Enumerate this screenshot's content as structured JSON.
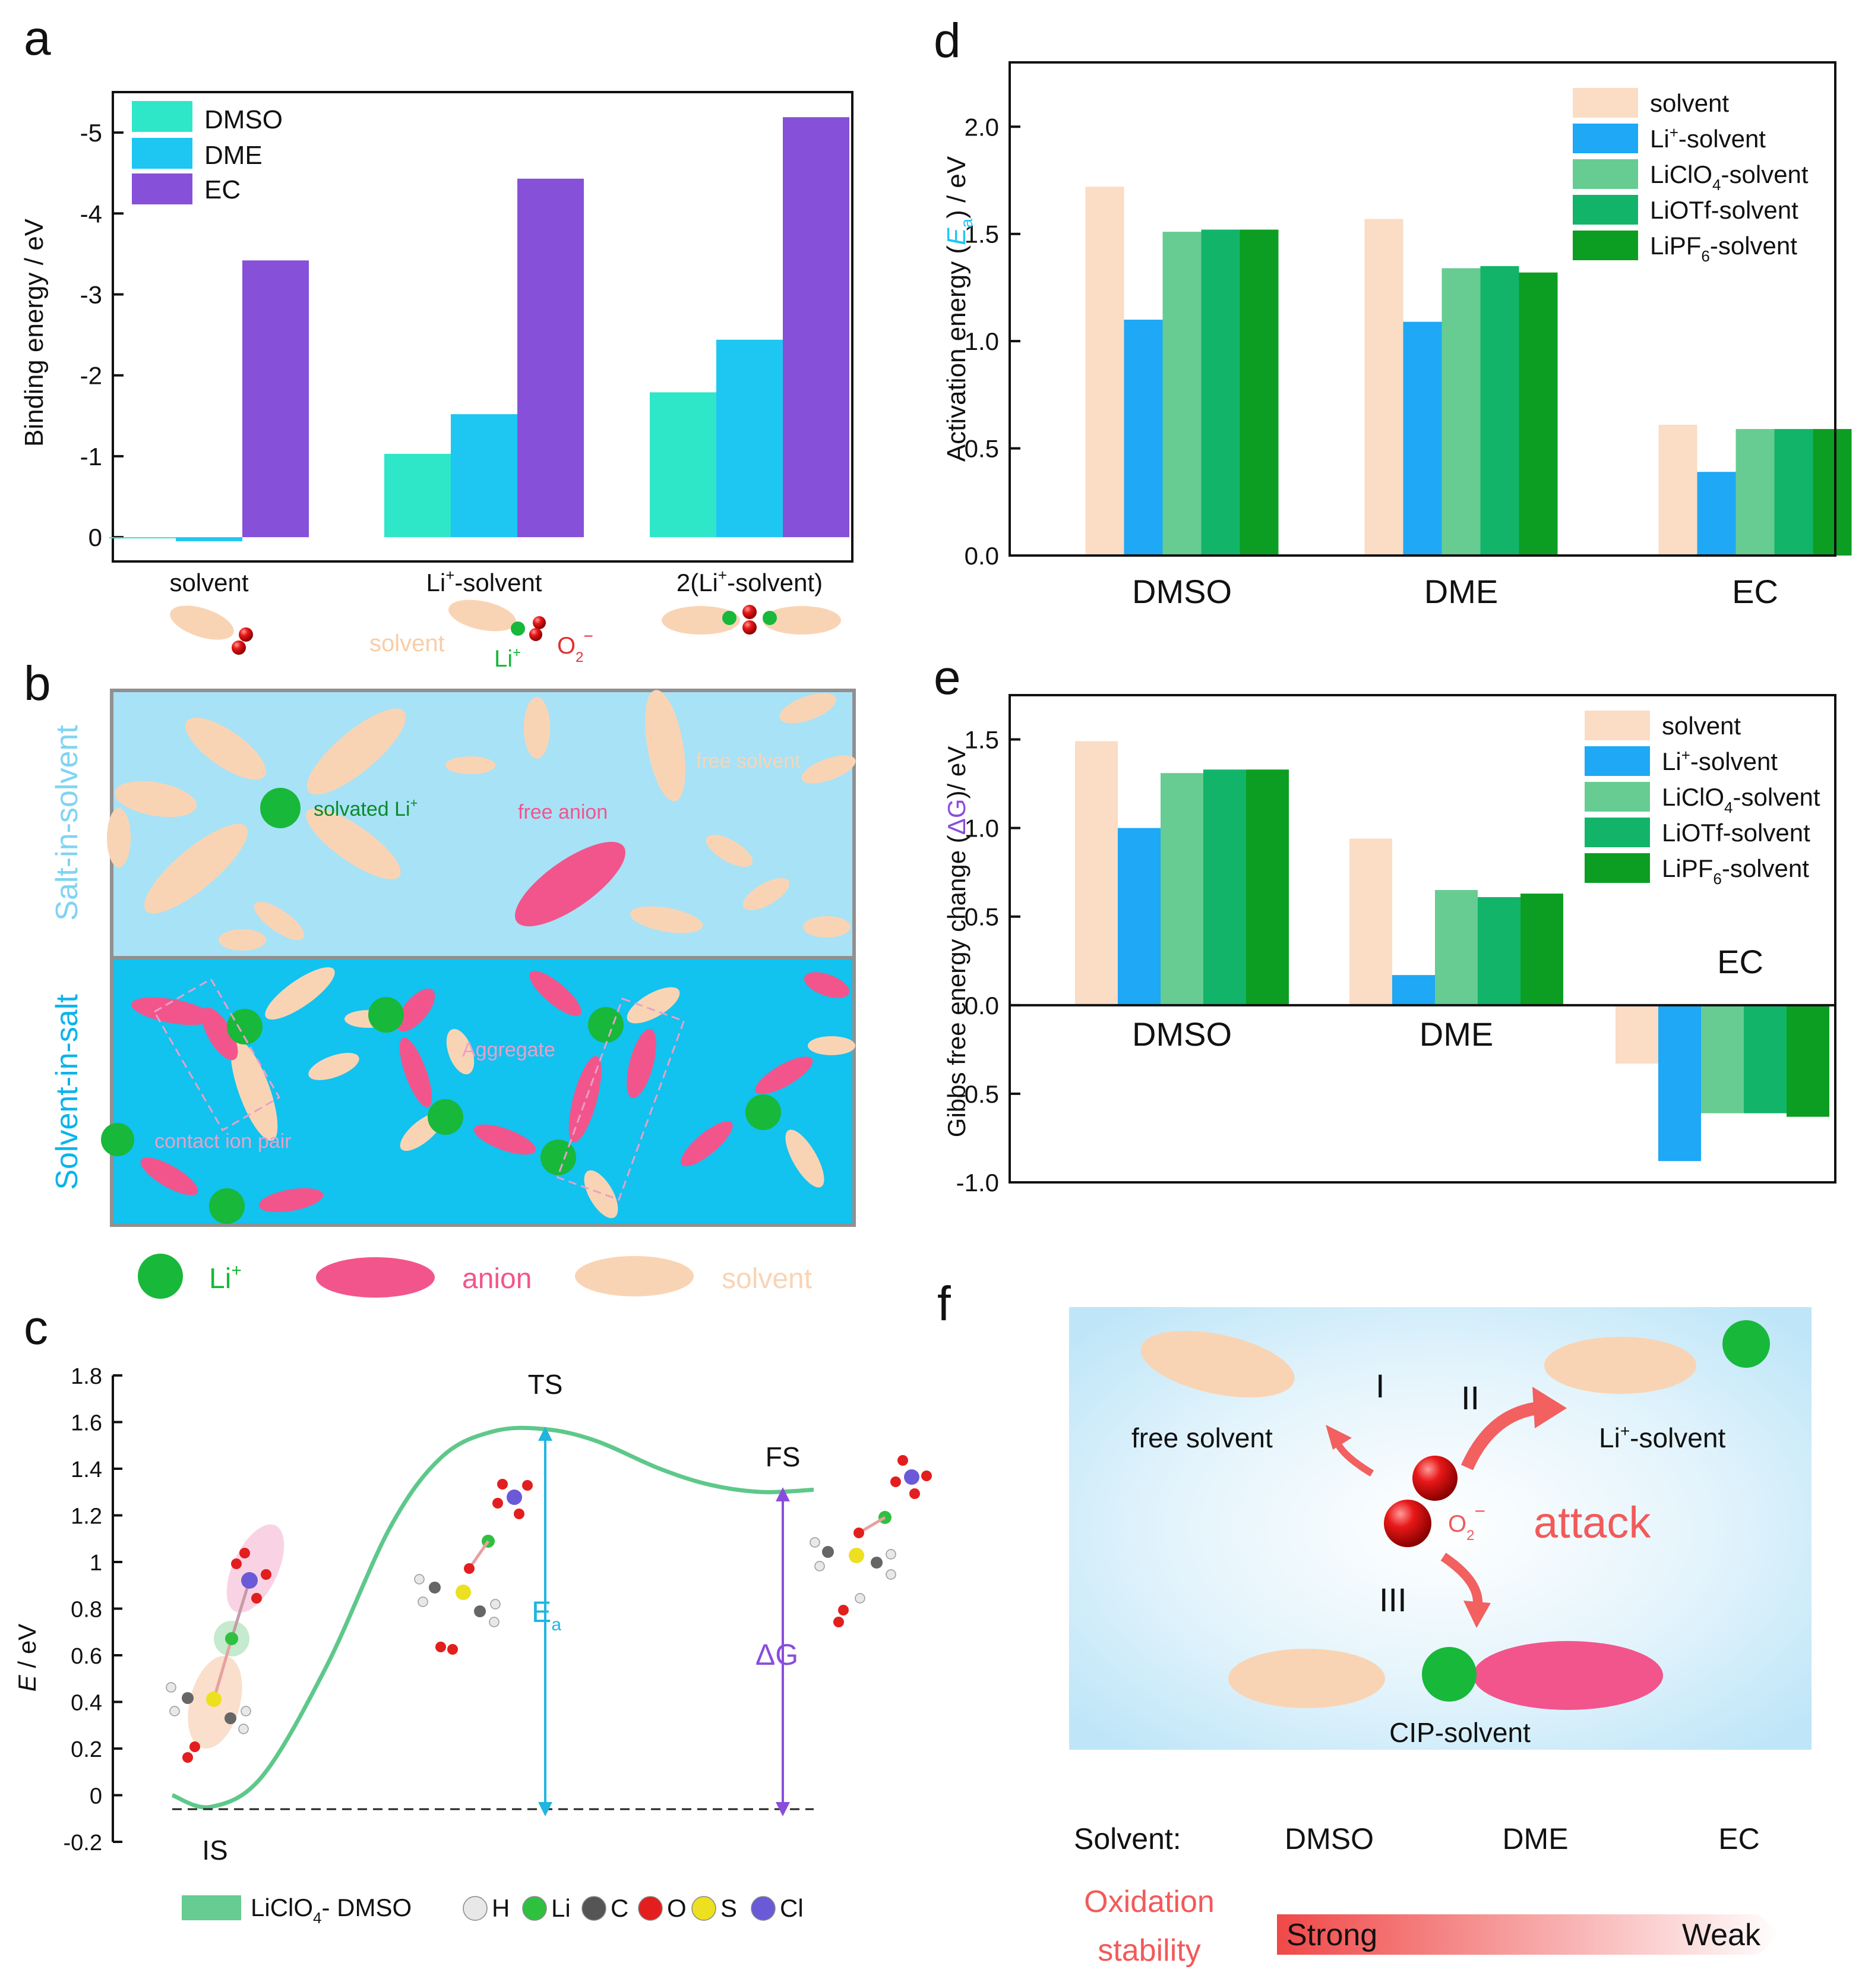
{
  "colors": {
    "dmso": "#2ee6c8",
    "dme": "#1ec6f2",
    "ec": "#8650d8",
    "solvent_bar": "#fbdcc4",
    "li_solvent": "#1ea8f5",
    "liclo4": "#66cc92",
    "liotf": "#12b46a",
    "lipf6": "#0c9e22",
    "li": "#18b83a",
    "anion": "#f2558c",
    "solvent_shape": "#f9d4b4",
    "sis_bg": "#a8e2f6",
    "sis2_bg": "#12c2ef",
    "curve": "#5ec88a",
    "ea": "#1fb6e0",
    "dg": "#8a4ddb",
    "oxid": "#f25a5a"
  },
  "panel_letters": {
    "a": "a",
    "b": "b",
    "c": "c",
    "d": "d",
    "e": "e",
    "f": "f"
  },
  "chart_data": [
    {
      "id": "a",
      "type": "bar",
      "ylabel": "Binding energy / eV",
      "yticks": [
        "0",
        "-1",
        "-2",
        "-3",
        "-4",
        "-5"
      ],
      "ylim": [
        0.3,
        -5.5
      ],
      "categories": [
        "solvent",
        "Li+-solvent",
        "2(Li+-solvent)"
      ],
      "category_labels": [
        {
          "main": "solvent"
        },
        {
          "main": "Li",
          "sup": "+",
          "rest": "-solvent"
        },
        {
          "main": "2(Li",
          "sup": "+",
          "rest": "-solvent)"
        }
      ],
      "series": [
        {
          "name": "DMSO",
          "values": [
            0.0,
            -1.03,
            -1.79
          ]
        },
        {
          "name": "DME",
          "values": [
            0.05,
            -1.52,
            -2.44
          ]
        },
        {
          "name": "EC",
          "values": [
            -3.42,
            -4.43,
            -5.19
          ]
        }
      ],
      "sublabels": {
        "solvent": "solvent",
        "li": "Li",
        "li_sup": "+",
        "o2": "O",
        "o2_sub": "2",
        "o2_sup": "−"
      }
    },
    {
      "id": "d",
      "type": "bar",
      "ylabel_pre": "Activation energy (",
      "ylabel_e": "E",
      "ylabel_sub": "a",
      "ylabel_post": ") / eV",
      "yticks": [
        "0.0",
        "0.5",
        "1.0",
        "1.5",
        "2.0"
      ],
      "ylim": [
        0,
        2.3
      ],
      "categories": [
        "DMSO",
        "DME",
        "EC"
      ],
      "series": [
        {
          "name": "solvent",
          "values": [
            1.72,
            1.57,
            0.61
          ]
        },
        {
          "name": "Li+-solvent",
          "values": [
            1.1,
            1.09,
            0.39
          ]
        },
        {
          "name": "LiClO4-solvent",
          "values": [
            1.51,
            1.34,
            0.59
          ]
        },
        {
          "name": "LiOTf-solvent",
          "values": [
            1.52,
            1.35,
            0.59
          ]
        },
        {
          "name": "LiPF6-solvent",
          "values": [
            1.52,
            1.32,
            0.59
          ]
        }
      ],
      "legend": [
        {
          "main": "solvent"
        },
        {
          "main": "Li",
          "sup": "+",
          "rest": "-solvent"
        },
        {
          "main": "LiClO",
          "sub": "4",
          "rest": "-solvent"
        },
        {
          "main": "LiOTf-solvent"
        },
        {
          "main": "LiPF",
          "sub": "6",
          "rest": "-solvent"
        }
      ]
    },
    {
      "id": "e",
      "type": "bar",
      "ylabel_pre": "Gibbs free energy change (",
      "ylabel_dg": "ΔG",
      "ylabel_post": ")/ eV",
      "yticks": [
        "-1.0",
        "-0.5",
        "0.0",
        "0.5",
        "1.0",
        "1.5"
      ],
      "ylim": [
        -1.0,
        1.75
      ],
      "categories": [
        "DMSO",
        "DME",
        "EC"
      ],
      "series": [
        {
          "name": "solvent",
          "values": [
            1.49,
            0.94,
            -0.33
          ]
        },
        {
          "name": "Li+-solvent",
          "values": [
            1.0,
            0.17,
            -0.88
          ]
        },
        {
          "name": "LiClO4-solvent",
          "values": [
            1.31,
            0.65,
            -0.61
          ]
        },
        {
          "name": "LiOTf-solvent",
          "values": [
            1.33,
            0.61,
            -0.61
          ]
        },
        {
          "name": "LiPF6-solvent",
          "values": [
            1.33,
            0.63,
            -0.63
          ]
        }
      ],
      "legend": [
        {
          "main": "solvent"
        },
        {
          "main": "Li",
          "sup": "+",
          "rest": "-solvent"
        },
        {
          "main": "LiClO",
          "sub": "4",
          "rest": "-solvent"
        },
        {
          "main": "LiOTf-solvent"
        },
        {
          "main": "LiPF",
          "sub": "6",
          "rest": "-solvent"
        }
      ]
    },
    {
      "id": "c",
      "type": "line",
      "ylabel_e": "E",
      "ylabel_rest": " / eV",
      "yticks": [
        "-0.2",
        "0",
        "0.2",
        "0.4",
        "0.6",
        "0.8",
        "1",
        "1.2",
        "1.4",
        "1.6",
        "1.8"
      ],
      "ylim": [
        -0.2,
        1.8
      ],
      "points": [
        [
          0,
          0.0
        ],
        [
          0.6,
          -0.05
        ],
        [
          1.4,
          0.08
        ],
        [
          2.4,
          0.55
        ],
        [
          3.4,
          1.15
        ],
        [
          4.2,
          1.45
        ],
        [
          5.0,
          1.56
        ],
        [
          5.8,
          1.57
        ],
        [
          6.6,
          1.52
        ],
        [
          7.6,
          1.4
        ],
        [
          8.4,
          1.33
        ],
        [
          9.2,
          1.3
        ],
        [
          10.0,
          1.31
        ]
      ],
      "annotations": {
        "ts": "TS",
        "fs": "FS",
        "is": "IS",
        "ea": "E",
        "ea_sub": "a",
        "dg": "ΔG"
      },
      "legend": {
        "curve_main": "LiClO",
        "curve_sub": "4",
        "curve_rest": "- DMSO",
        "atoms": [
          "H",
          "Li",
          "C",
          "O",
          "S",
          "Cl"
        ]
      }
    }
  ],
  "panel_b": {
    "top_side": "Salt-in-solvent",
    "bottom_side": "Solvent-in-salt",
    "free_solvent": "free solvent",
    "solvated_li": "solvated Li",
    "solvated_li_sup": "+",
    "free_anion": "free anion",
    "aggregate": "Aggregate",
    "contact_ion_pair": "contact ion pair",
    "legend_li": "Li",
    "legend_li_sup": "+",
    "legend_anion": "anion",
    "legend_solvent": "solvent"
  },
  "panel_f": {
    "free_solvent": "free solvent",
    "li_solvent_main": "Li",
    "li_solvent_sup": "+",
    "li_solvent_rest": "-solvent",
    "cip_solvent": "CIP-solvent",
    "roman1": "I",
    "roman2": "II",
    "roman3": "III",
    "o2": "O",
    "o2_sub": "2",
    "o2_sup": "−",
    "attack": "attack",
    "solvent_label": "Solvent:",
    "solvents": [
      "DMSO",
      "DME",
      "EC"
    ],
    "oxidation_line1": "Oxidation",
    "oxidation_line2": "stability",
    "strong": "Strong",
    "weak": "Weak"
  }
}
